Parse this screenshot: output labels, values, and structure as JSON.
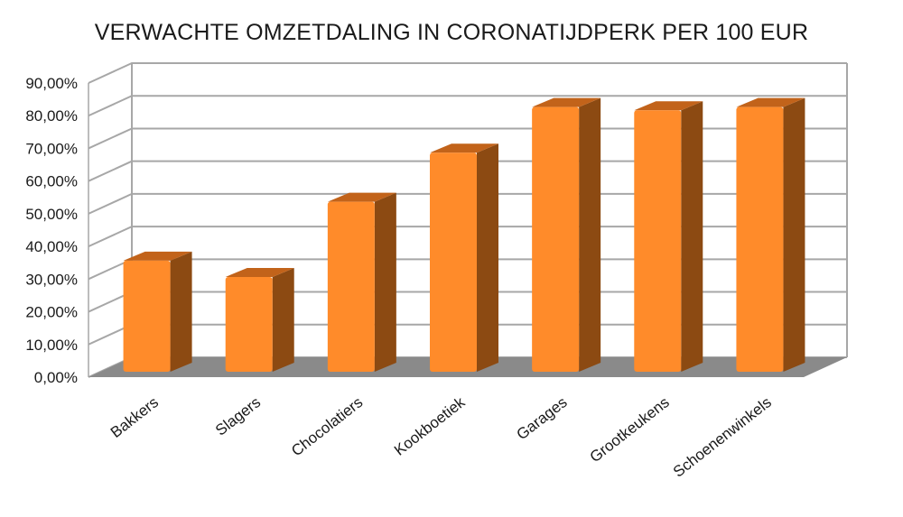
{
  "chart_data": {
    "type": "bar",
    "title": "VERWACHTE OMZETDALING IN CORONATIJDPERK PER 100 EUR",
    "categories": [
      "Bakkers",
      "Slagers",
      "Chocolatiers",
      "Kookboetiek",
      "Garages",
      "Grootkeukens",
      "Schoenenwinkels"
    ],
    "values": [
      0.34,
      0.29,
      0.52,
      0.67,
      0.81,
      0.8,
      0.81
    ],
    "ylim": [
      0,
      0.9
    ],
    "yticks": [
      "0,00%",
      "10,00%",
      "20,00%",
      "30,00%",
      "40,00%",
      "50,00%",
      "60,00%",
      "70,00%",
      "80,00%",
      "90,00%"
    ],
    "grid": true,
    "legend": "none",
    "colors": {
      "bar_front": "#FF8B2A",
      "bar_side": "#8C4A12",
      "bar_top": "#C2631A",
      "floor": "#8A8A8A",
      "grid": "#A7A7A7"
    }
  }
}
